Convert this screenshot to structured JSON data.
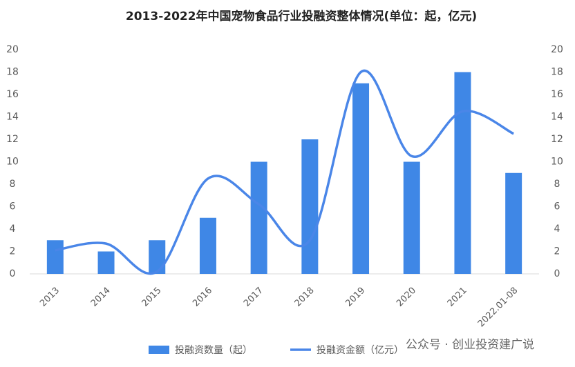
{
  "chart_data": {
    "type": "bar-line",
    "title": "2013-2022年中国宠物食品行业投融资整体情况(单位：起，亿元)",
    "categories": [
      "2013",
      "2014",
      "2015",
      "2016",
      "2017",
      "2018",
      "2019",
      "2020",
      "2021",
      "2022.01-08"
    ],
    "series": [
      {
        "name": "投融资数量（起）",
        "type": "bar",
        "color": "#3f87e6",
        "values": [
          3,
          2,
          3,
          5,
          10,
          12,
          17,
          10,
          18,
          9
        ]
      },
      {
        "name": "投融资金额（亿元）",
        "type": "line",
        "axis": "y2",
        "color": "#4a86e8",
        "values": [
          2.1,
          2.7,
          0.2,
          8.5,
          6.2,
          3,
          18,
          10.5,
          14.5,
          12.5
        ]
      }
    ],
    "ylim": [
      0,
      20
    ],
    "yticks": [
      0,
      2,
      4,
      6,
      8,
      10,
      12,
      14,
      16,
      18,
      20
    ],
    "y2lim": [
      0,
      20
    ],
    "y2ticks": [
      0,
      2,
      4,
      6,
      8,
      10,
      12,
      14,
      16,
      18,
      20
    ],
    "grid": false,
    "legend": "bottom",
    "watermark": "公众号 · 创业投资建广说"
  }
}
